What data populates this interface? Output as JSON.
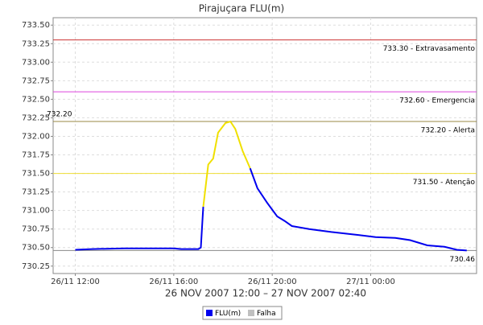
{
  "chart_data": {
    "type": "line",
    "title": "Pirajuçara FLU(m)",
    "subtitle": "26 NOV 2007 12:00 – 27 NOV 2007 02:40",
    "x": [
      12.0,
      12.7,
      14.0,
      16.0,
      16.3,
      17.0,
      17.1,
      17.2,
      17.4,
      17.6,
      17.8,
      18.1,
      18.3,
      18.5,
      18.8,
      19.1,
      19.4,
      19.8,
      20.2,
      20.5,
      20.8,
      21.5,
      22.4,
      23.5,
      24.2,
      25.0,
      25.6,
      26.3,
      27.0,
      27.5,
      27.9
    ],
    "series": [
      {
        "name": "FLU(m)",
        "color": "#0000ee",
        "values": [
          730.47,
          730.48,
          730.49,
          730.49,
          730.48,
          730.48,
          730.5,
          731.05,
          null,
          null,
          null,
          null,
          null,
          null,
          null,
          731.57,
          731.3,
          731.1,
          730.92,
          730.86,
          730.79,
          730.75,
          730.71,
          730.67,
          730.64,
          730.63,
          730.6,
          730.53,
          730.51,
          730.47,
          730.46
        ]
      },
      {
        "color": "#f0e000",
        "values": [
          null,
          null,
          null,
          null,
          null,
          null,
          null,
          731.05,
          731.62,
          731.7,
          732.05,
          732.18,
          732.2,
          732.1,
          731.8,
          731.57,
          null,
          null,
          null,
          null,
          null,
          null,
          null,
          null,
          null,
          null,
          null,
          null,
          null,
          null,
          null
        ]
      }
    ],
    "legend": [
      {
        "name": "FLU(m)",
        "color": "#0000ee"
      },
      {
        "name": "Falha",
        "color": "#c0c0c0"
      }
    ],
    "thresholds": [
      {
        "value": 733.3,
        "label": "733.30 - Extravasamento",
        "color": "#cc3333"
      },
      {
        "value": 732.6,
        "label": "732.60 - Emergencia",
        "color": "#dd44dd"
      },
      {
        "value": 732.2,
        "label": "732.20 - Alerta",
        "color": "#998844"
      },
      {
        "value": 731.5,
        "label": "731.50 - Atenção",
        "color": "#eedd33"
      },
      {
        "value": 730.46,
        "label": "730.46",
        "color": "#888888"
      }
    ],
    "annotations": [
      {
        "value": 732.2,
        "label": "732.20"
      }
    ],
    "xlim": [
      11.1,
      28.3
    ],
    "xticks": [
      {
        "value": 12,
        "label": "26/11 12:00"
      },
      {
        "value": 16,
        "label": "26/11 16:00"
      },
      {
        "value": 20,
        "label": "26/11 20:00"
      },
      {
        "value": 24,
        "label": "27/11 00:00"
      }
    ],
    "ylim": [
      730.15,
      733.6
    ],
    "yticks": [
      {
        "value": 730.25,
        "label": "730.25"
      },
      {
        "value": 730.5,
        "label": "730.50"
      },
      {
        "value": 730.75,
        "label": "730.75"
      },
      {
        "value": 731,
        "label": "731.00"
      },
      {
        "value": 731.25,
        "label": "731.25"
      },
      {
        "value": 731.5,
        "label": "731.50"
      },
      {
        "value": 731.75,
        "label": "731.75"
      },
      {
        "value": 732,
        "label": "732.00"
      },
      {
        "value": 732.25,
        "label": "732.25"
      },
      {
        "value": 732.5,
        "label": "732.50"
      },
      {
        "value": 732.75,
        "label": "732.75"
      },
      {
        "value": 733,
        "label": "733.00"
      },
      {
        "value": 733.25,
        "label": "733.25"
      },
      {
        "value": 733.5,
        "label": "733.50"
      }
    ],
    "grid": true
  }
}
